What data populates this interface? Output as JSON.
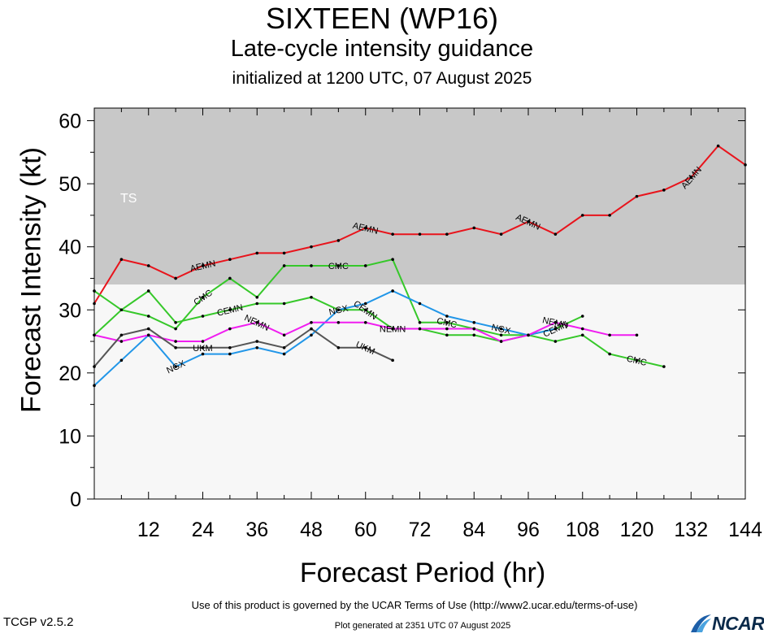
{
  "header": {
    "title": "SIXTEEN (WP16)",
    "subtitle": "Late-cycle intensity guidance",
    "init": "initialized at 1200 UTC, 07 August 2025"
  },
  "footer": {
    "terms": "Use of this product is governed by the UCAR Terms of Use (http://www2.ucar.edu/terms-of-use)",
    "generated": "Plot generated at 2351 UTC   07 August 2025",
    "version": "TCGP v2.5.2",
    "logo": "NCAR"
  },
  "chart_data": {
    "type": "line",
    "xlabel": "Forecast Period (hr)",
    "ylabel": "Forecast Intensity (kt)",
    "xlim": [
      0,
      144
    ],
    "ylim": [
      0,
      62
    ],
    "xticks": [
      "12",
      "24",
      "36",
      "48",
      "60",
      "72",
      "84",
      "96",
      "108",
      "120",
      "132",
      "144"
    ],
    "yticks": [
      "0",
      "10",
      "20",
      "30",
      "40",
      "50",
      "60"
    ],
    "bands": [
      {
        "label": "TS",
        "from": 34,
        "to": 62,
        "color": "#c8c8c8"
      },
      {
        "label": "",
        "from": 0,
        "to": 34,
        "color": "#f7f7f7"
      }
    ],
    "series": [
      {
        "name": "AEMN",
        "color": "#e8141c",
        "x": [
          0,
          6,
          12,
          18,
          24,
          30,
          36,
          42,
          48,
          54,
          60,
          66,
          72,
          78,
          84,
          90,
          96,
          102,
          108,
          114,
          120,
          126,
          132,
          138,
          144
        ],
        "y": [
          31,
          38,
          37,
          35,
          37,
          38,
          39,
          39,
          40,
          41,
          43,
          42,
          42,
          42,
          43,
          42,
          44,
          42,
          45,
          45,
          48,
          49,
          51,
          56,
          53
        ],
        "label_at": [
          24,
          60,
          96,
          132
        ]
      },
      {
        "name": "CMC",
        "color": "#36c82a",
        "x": [
          0,
          6,
          12,
          18,
          24,
          30,
          36,
          42,
          48,
          54,
          60,
          66,
          72,
          78,
          84,
          90,
          96,
          102,
          108,
          114,
          120,
          126
        ],
        "y": [
          33,
          30,
          29,
          27,
          32,
          35,
          32,
          37,
          37,
          37,
          37,
          38,
          28,
          28,
          27,
          26,
          26,
          25,
          26,
          23,
          22,
          21
        ],
        "label_at": [
          24,
          54,
          78,
          120
        ]
      },
      {
        "name": "CEMN",
        "color": "#36c82a",
        "x": [
          0,
          6,
          12,
          18,
          24,
          30,
          36,
          42,
          48,
          54,
          60,
          66,
          72,
          78,
          84,
          90,
          96,
          102,
          108
        ],
        "y": [
          26,
          30,
          33,
          28,
          29,
          30,
          31,
          31,
          32,
          30,
          30,
          27,
          27,
          26,
          26,
          25,
          26,
          27,
          29
        ],
        "label_at": [
          30,
          60,
          102
        ]
      },
      {
        "name": "NGX",
        "color": "#2196e8",
        "x": [
          0,
          6,
          12,
          18,
          24,
          30,
          36,
          42,
          48,
          54,
          60,
          66,
          72,
          78,
          84,
          90,
          96,
          102
        ],
        "y": [
          18,
          22,
          26,
          21,
          23,
          23,
          24,
          23,
          26,
          30,
          31,
          33,
          31,
          29,
          28,
          27,
          26,
          27
        ],
        "label_at": [
          18,
          54,
          90
        ]
      },
      {
        "name": "NEMN",
        "color": "#f01ef0",
        "x": [
          0,
          6,
          12,
          18,
          24,
          30,
          36,
          42,
          48,
          54,
          60,
          66,
          72,
          78,
          84,
          90,
          96,
          102,
          108,
          114,
          120
        ],
        "y": [
          26,
          25,
          26,
          25,
          25,
          27,
          28,
          26,
          28,
          28,
          28,
          27,
          27,
          27,
          27,
          25,
          26,
          28,
          27,
          26,
          26
        ],
        "label_at": [
          36,
          66,
          102
        ]
      },
      {
        "name": "UKM",
        "color": "#555555",
        "x": [
          0,
          6,
          12,
          18,
          24,
          30,
          36,
          42,
          48,
          54,
          60,
          66
        ],
        "y": [
          21,
          26,
          27,
          24,
          24,
          24,
          25,
          24,
          27,
          24,
          24,
          22
        ],
        "label_at": [
          24,
          60
        ]
      }
    ]
  }
}
